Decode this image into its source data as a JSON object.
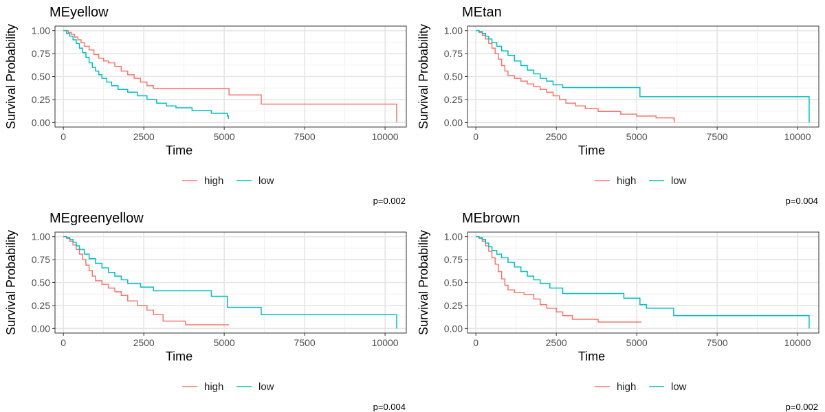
{
  "colors": {
    "high": "#F8766D",
    "low": "#00BFC4"
  },
  "legend": {
    "items": [
      {
        "key": "high",
        "label": "high"
      },
      {
        "key": "low",
        "label": "low"
      }
    ]
  },
  "chart_data": [
    {
      "type": "line",
      "title": "MEyellow",
      "xlabel": "Time",
      "ylabel": "Survival Probability",
      "xlim": [
        0,
        10400
      ],
      "ylim": [
        0,
        1
      ],
      "xticks": [
        0,
        2500,
        5000,
        7500,
        10000
      ],
      "yticks": [
        0,
        0.25,
        0.5,
        0.75,
        1
      ],
      "grid": true,
      "legend_position": "bottom",
      "pvalue": "p=0.002",
      "series": [
        {
          "name": "high",
          "x": [
            0,
            150,
            250,
            350,
            450,
            550,
            650,
            800,
            950,
            1100,
            1250,
            1400,
            1600,
            1800,
            2000,
            2200,
            2400,
            2600,
            2800,
            5150,
            6150,
            10350,
            10360
          ],
          "y": [
            1.0,
            0.98,
            0.96,
            0.93,
            0.9,
            0.87,
            0.83,
            0.79,
            0.74,
            0.7,
            0.67,
            0.65,
            0.61,
            0.56,
            0.52,
            0.48,
            0.44,
            0.4,
            0.37,
            0.3,
            0.2,
            0.2,
            0.0
          ]
        },
        {
          "name": "low",
          "x": [
            0,
            100,
            200,
            300,
            400,
            500,
            600,
            700,
            800,
            900,
            1000,
            1100,
            1200,
            1350,
            1500,
            1700,
            2000,
            2300,
            2600,
            2900,
            3200,
            3500,
            4000,
            4600,
            5100,
            5130
          ],
          "y": [
            1.0,
            0.97,
            0.94,
            0.9,
            0.86,
            0.81,
            0.76,
            0.71,
            0.65,
            0.6,
            0.56,
            0.52,
            0.48,
            0.44,
            0.4,
            0.36,
            0.33,
            0.29,
            0.25,
            0.21,
            0.18,
            0.16,
            0.13,
            0.1,
            0.07,
            0.04
          ]
        }
      ]
    },
    {
      "type": "line",
      "title": "MEtan",
      "xlabel": "Time",
      "ylabel": "Survival Probability",
      "xlim": [
        0,
        10400
      ],
      "ylim": [
        0,
        1
      ],
      "xticks": [
        0,
        2500,
        5000,
        7500,
        10000
      ],
      "yticks": [
        0,
        0.25,
        0.5,
        0.75,
        1
      ],
      "grid": true,
      "legend_position": "bottom",
      "pvalue": "p=0.004",
      "series": [
        {
          "name": "high",
          "x": [
            0,
            100,
            200,
            300,
            400,
            500,
            600,
            700,
            800,
            900,
            1000,
            1200,
            1400,
            1600,
            1800,
            2000,
            2200,
            2400,
            2600,
            2800,
            3100,
            3400,
            3800,
            4500,
            5000,
            5600,
            6150,
            6170
          ],
          "y": [
            1.0,
            0.98,
            0.95,
            0.91,
            0.86,
            0.81,
            0.75,
            0.69,
            0.62,
            0.56,
            0.51,
            0.48,
            0.45,
            0.42,
            0.39,
            0.36,
            0.33,
            0.29,
            0.25,
            0.21,
            0.18,
            0.15,
            0.12,
            0.09,
            0.07,
            0.05,
            0.04,
            0.0
          ]
        },
        {
          "name": "low",
          "x": [
            0,
            100,
            200,
            300,
            400,
            500,
            650,
            800,
            1000,
            1200,
            1400,
            1600,
            1800,
            2000,
            2200,
            2400,
            2700,
            5100,
            10350,
            10360
          ],
          "y": [
            1.0,
            0.99,
            0.97,
            0.94,
            0.91,
            0.87,
            0.83,
            0.78,
            0.73,
            0.67,
            0.62,
            0.57,
            0.53,
            0.48,
            0.45,
            0.41,
            0.38,
            0.28,
            0.28,
            0.0
          ]
        }
      ]
    },
    {
      "type": "line",
      "title": "MEgreenyellow",
      "xlabel": "Time",
      "ylabel": "Survival Probability",
      "xlim": [
        0,
        10400
      ],
      "ylim": [
        0,
        1
      ],
      "xticks": [
        0,
        2500,
        5000,
        7500,
        10000
      ],
      "yticks": [
        0,
        0.25,
        0.5,
        0.75,
        1
      ],
      "grid": true,
      "legend_position": "bottom",
      "pvalue": "p=0.004",
      "series": [
        {
          "name": "high",
          "x": [
            0,
            100,
            200,
            300,
            400,
            500,
            600,
            700,
            800,
            900,
            1000,
            1200,
            1400,
            1600,
            1800,
            2000,
            2300,
            2600,
            2800,
            3100,
            3800,
            5150
          ],
          "y": [
            1.0,
            0.98,
            0.95,
            0.91,
            0.86,
            0.81,
            0.75,
            0.69,
            0.63,
            0.57,
            0.52,
            0.48,
            0.44,
            0.4,
            0.36,
            0.3,
            0.25,
            0.2,
            0.15,
            0.08,
            0.04,
            0.04
          ]
        },
        {
          "name": "low",
          "x": [
            0,
            100,
            200,
            300,
            400,
            500,
            650,
            800,
            1000,
            1200,
            1400,
            1600,
            1800,
            2000,
            2400,
            2800,
            4600,
            5100,
            6150,
            10350,
            10360
          ],
          "y": [
            1.0,
            0.99,
            0.97,
            0.94,
            0.9,
            0.86,
            0.81,
            0.76,
            0.71,
            0.66,
            0.61,
            0.57,
            0.53,
            0.49,
            0.45,
            0.41,
            0.35,
            0.23,
            0.15,
            0.15,
            0.0
          ]
        }
      ]
    },
    {
      "type": "line",
      "title": "MEbrown",
      "xlabel": "Time",
      "ylabel": "Survival Probability",
      "xlim": [
        0,
        10400
      ],
      "ylim": [
        0,
        1
      ],
      "xticks": [
        0,
        2500,
        5000,
        7500,
        10000
      ],
      "yticks": [
        0,
        0.25,
        0.5,
        0.75,
        1
      ],
      "grid": true,
      "legend_position": "bottom",
      "pvalue": "p=0.002",
      "series": [
        {
          "name": "high",
          "x": [
            0,
            100,
            200,
            300,
            400,
            500,
            600,
            700,
            800,
            900,
            1000,
            1200,
            1500,
            1800,
            2000,
            2200,
            2500,
            2700,
            3000,
            3800,
            5150
          ],
          "y": [
            1.0,
            0.98,
            0.95,
            0.9,
            0.84,
            0.77,
            0.7,
            0.62,
            0.54,
            0.47,
            0.42,
            0.39,
            0.37,
            0.32,
            0.26,
            0.22,
            0.18,
            0.14,
            0.1,
            0.07,
            0.07
          ]
        },
        {
          "name": "low",
          "x": [
            0,
            100,
            200,
            300,
            400,
            500,
            650,
            800,
            1000,
            1200,
            1400,
            1600,
            1800,
            2000,
            2300,
            2700,
            4600,
            5100,
            5300,
            6150,
            10350,
            10360
          ],
          "y": [
            1.0,
            0.99,
            0.97,
            0.93,
            0.89,
            0.85,
            0.81,
            0.77,
            0.72,
            0.67,
            0.62,
            0.57,
            0.53,
            0.49,
            0.44,
            0.38,
            0.33,
            0.26,
            0.22,
            0.14,
            0.14,
            0.0
          ]
        }
      ]
    }
  ]
}
